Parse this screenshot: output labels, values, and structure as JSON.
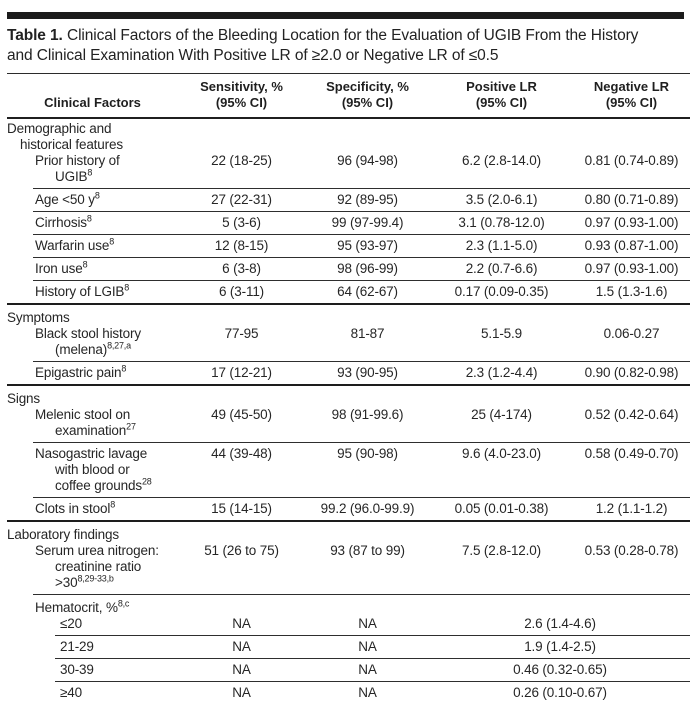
{
  "title": {
    "label": "Table 1.",
    "line1": "Clinical Factors of the Bleeding Location for the Evaluation of UGIB From the History",
    "line2": "and Clinical Examination With Positive LR of ≥2.0 or Negative LR of ≤0.5"
  },
  "columns": [
    {
      "line1": "Clinical Factors",
      "line2": ""
    },
    {
      "line1": "Sensitivity, %",
      "line2": "(95% CI)"
    },
    {
      "line1": "Specificity, %",
      "line2": "(95% CI)"
    },
    {
      "line1": "Positive LR",
      "line2": "(95% CI)"
    },
    {
      "line1": "Negative LR",
      "line2": "(95% CI)"
    }
  ],
  "rows": [
    {
      "type": "section",
      "indent": 0,
      "label_lines": [
        {
          "text": "Demographic and"
        },
        {
          "text": "historical features"
        }
      ],
      "rule": "none"
    },
    {
      "type": "item",
      "indent": 1,
      "label_lines": [
        {
          "text": "Prior history of"
        },
        {
          "text": "UGIB",
          "sup": "8"
        }
      ],
      "cells": [
        "22 (18-25)",
        "96 (94-98)",
        "6.2 (2.8-14.0)",
        "0.81 (0.74-0.89)"
      ],
      "rule": "indent"
    },
    {
      "type": "item",
      "indent": 1,
      "label_lines": [
        {
          "text": "Age <50 y",
          "sup": "8"
        }
      ],
      "cells": [
        "27 (22-31)",
        "92 (89-95)",
        "3.5 (2.0-6.1)",
        "0.80 (0.71-0.89)"
      ],
      "rule": "indent"
    },
    {
      "type": "item",
      "indent": 1,
      "label_lines": [
        {
          "text": "Cirrhosis",
          "sup": "8"
        }
      ],
      "cells": [
        "5 (3-6)",
        "99 (97-99.4)",
        "3.1 (0.78-12.0)",
        "0.97 (0.93-1.00)"
      ],
      "rule": "indent"
    },
    {
      "type": "item",
      "indent": 1,
      "label_lines": [
        {
          "text": "Warfarin use",
          "sup": "8"
        }
      ],
      "cells": [
        "12 (8-15)",
        "95 (93-97)",
        "2.3 (1.1-5.0)",
        "0.93 (0.87-1.00)"
      ],
      "rule": "indent"
    },
    {
      "type": "item",
      "indent": 1,
      "label_lines": [
        {
          "text": "Iron use",
          "sup": "8"
        }
      ],
      "cells": [
        "6 (3-8)",
        "98 (96-99)",
        "2.2 (0.7-6.6)",
        "0.97 (0.93-1.00)"
      ],
      "rule": "indent"
    },
    {
      "type": "item",
      "indent": 1,
      "label_lines": [
        {
          "text": "History of LGIB",
          "sup": "8"
        }
      ],
      "cells": [
        "6 (3-11)",
        "64 (62-67)",
        "0.17 (0.09-0.35)",
        "1.5 (1.3-1.6)"
      ],
      "rule": "full"
    },
    {
      "type": "section",
      "indent": 0,
      "label_lines": [
        {
          "text": "Symptoms"
        }
      ],
      "rule": "none"
    },
    {
      "type": "item",
      "indent": 1,
      "label_lines": [
        {
          "text": "Black stool history"
        },
        {
          "text": "(melena)",
          "sup": "8,27,a"
        }
      ],
      "cells": [
        "77-95",
        "81-87",
        "5.1-5.9",
        "0.06-0.27"
      ],
      "rule": "indent"
    },
    {
      "type": "item",
      "indent": 1,
      "label_lines": [
        {
          "text": "Epigastric pain",
          "sup": "8"
        }
      ],
      "cells": [
        "17 (12-21)",
        "93 (90-95)",
        "2.3 (1.2-4.4)",
        "0.90 (0.82-0.98)"
      ],
      "rule": "full"
    },
    {
      "type": "section",
      "indent": 0,
      "label_lines": [
        {
          "text": "Signs"
        }
      ],
      "rule": "none"
    },
    {
      "type": "item",
      "indent": 1,
      "label_lines": [
        {
          "text": "Melenic stool on"
        },
        {
          "text": "examination",
          "sup": "27"
        }
      ],
      "cells": [
        "49 (45-50)",
        "98 (91-99.6)",
        "25 (4-174)",
        "0.52 (0.42-0.64)"
      ],
      "rule": "indent"
    },
    {
      "type": "item",
      "indent": 1,
      "label_lines": [
        {
          "text": "Nasogastric lavage"
        },
        {
          "text": "with blood or"
        },
        {
          "text": "coffee grounds",
          "sup": "28"
        }
      ],
      "cells": [
        "44 (39-48)",
        "95 (90-98)",
        "9.6 (4.0-23.0)",
        "0.58 (0.49-0.70)"
      ],
      "rule": "indent"
    },
    {
      "type": "item",
      "indent": 1,
      "label_lines": [
        {
          "text": "Clots in stool",
          "sup": "8"
        }
      ],
      "cells": [
        "15 (14-15)",
        "99.2 (96.0-99.9)",
        "0.05 (0.01-0.38)",
        "1.2 (1.1-1.2)"
      ],
      "rule": "full"
    },
    {
      "type": "section",
      "indent": 0,
      "label_lines": [
        {
          "text": "Laboratory findings"
        }
      ],
      "rule": "none"
    },
    {
      "type": "item",
      "indent": 1,
      "label_lines": [
        {
          "text": "Serum urea nitrogen:"
        },
        {
          "text": "creatinine ratio"
        },
        {
          "text": ">30",
          "sup": "8,29-33,b"
        }
      ],
      "cells": [
        "51 (26 to 75)",
        "93 (87 to 99)",
        "7.5 (2.8-12.0)",
        "0.53 (0.28-0.78)"
      ],
      "rule": "indent"
    },
    {
      "type": "section",
      "indent": 1,
      "label_lines": [
        {
          "text": "Hematocrit, %",
          "sup": "8,c"
        }
      ],
      "rule": "none"
    },
    {
      "type": "item",
      "indent": 2,
      "label_lines": [
        {
          "text": "≤20"
        }
      ],
      "cells": [
        "NA",
        "NA"
      ],
      "merged": "2.6 (1.4-4.6)",
      "rule": "sub"
    },
    {
      "type": "item",
      "indent": 2,
      "label_lines": [
        {
          "text": "21-29"
        }
      ],
      "cells": [
        "NA",
        "NA"
      ],
      "merged": "1.9 (1.4-2.5)",
      "rule": "sub"
    },
    {
      "type": "item",
      "indent": 2,
      "label_lines": [
        {
          "text": "30-39"
        }
      ],
      "cells": [
        "NA",
        "NA"
      ],
      "merged": "0.46 (0.32-0.65)",
      "rule": "sub"
    },
    {
      "type": "item",
      "indent": 2,
      "label_lines": [
        {
          "text": "≥40"
        }
      ],
      "cells": [
        "NA",
        "NA"
      ],
      "merged": "0.26 (0.10-0.67)",
      "rule": "bottom"
    }
  ]
}
